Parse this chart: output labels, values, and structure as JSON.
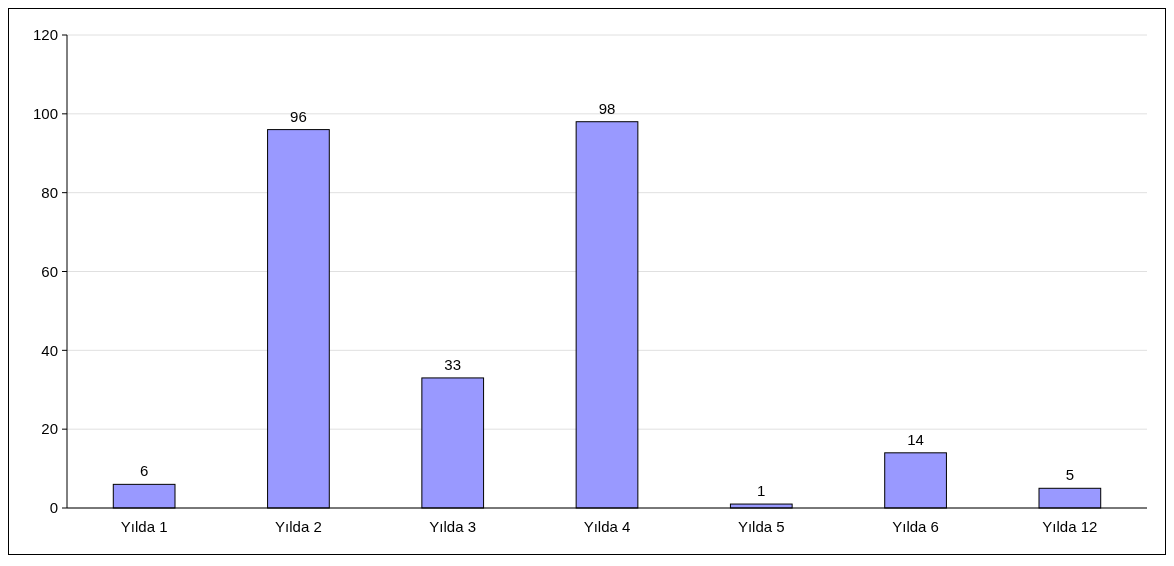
{
  "chart_data": {
    "type": "bar",
    "categories": [
      "Yılda 1",
      "Yılda 2",
      "Yılda 3",
      "Yılda 4",
      "Yılda 5",
      "Yılda 6",
      "Yılda 12"
    ],
    "values": [
      6,
      96,
      33,
      98,
      1,
      14,
      5
    ],
    "color": "#9999ff",
    "ylim": [
      0,
      120
    ],
    "yticks": [
      0,
      20,
      40,
      60,
      80,
      100,
      120
    ],
    "grid": "y",
    "data_labels": true
  }
}
